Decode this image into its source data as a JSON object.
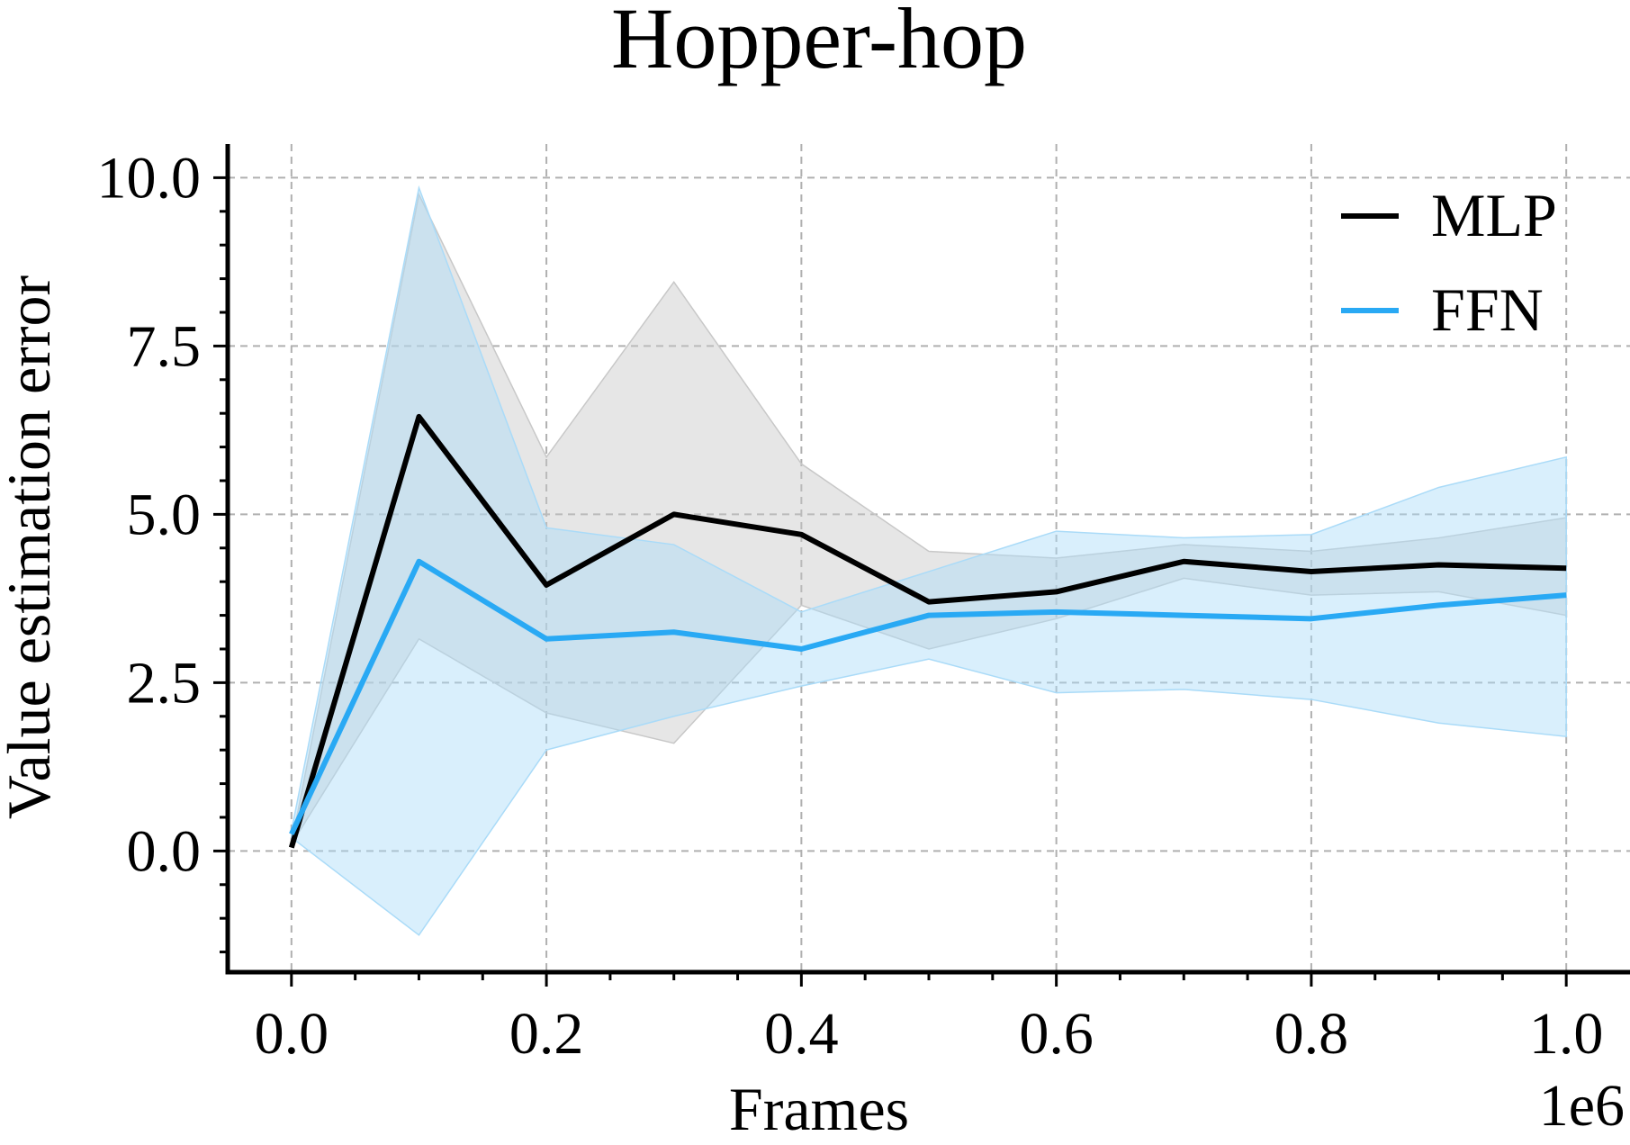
{
  "chart_data": {
    "type": "line",
    "title": "Hopper-hop",
    "xlabel": "Frames",
    "ylabel": "Value estimation error",
    "x_offset_text": "1e6",
    "xlim": [
      -0.05,
      1.05
    ],
    "ylim": [
      -1.8,
      10.5
    ],
    "x_ticks": [
      0.0,
      0.2,
      0.4,
      0.6,
      0.8,
      1.0
    ],
    "x_tick_labels": [
      "0.0",
      "0.2",
      "0.4",
      "0.6",
      "0.8",
      "1.0"
    ],
    "y_ticks": [
      0.0,
      2.5,
      5.0,
      7.5,
      10.0
    ],
    "y_tick_labels": [
      "0.0",
      "2.5",
      "5.0",
      "7.5",
      "10.0"
    ],
    "grid": true,
    "legend_position": "top-right",
    "x": [
      0.0,
      0.1,
      0.2,
      0.3,
      0.4,
      0.5,
      0.6,
      0.7,
      0.8,
      0.9,
      1.0
    ],
    "series": [
      {
        "name": "MLP",
        "color": "#000000",
        "fill_color": "#c8c8c8",
        "values": [
          0.05,
          6.45,
          3.95,
          5.0,
          4.7,
          3.7,
          3.85,
          4.3,
          4.15,
          4.25,
          4.2
        ],
        "lower": [
          0.1,
          3.15,
          2.05,
          1.6,
          3.65,
          3.0,
          3.45,
          4.05,
          3.8,
          3.85,
          3.5
        ],
        "upper": [
          0.1,
          9.75,
          5.85,
          8.45,
          5.75,
          4.45,
          4.35,
          4.55,
          4.45,
          4.65,
          4.95
        ]
      },
      {
        "name": "FFN",
        "color": "#29a9f4",
        "fill_color": "#aadbf8",
        "values": [
          0.25,
          4.3,
          3.15,
          3.25,
          3.0,
          3.5,
          3.55,
          3.5,
          3.45,
          3.65,
          3.8
        ],
        "lower": [
          0.2,
          -1.25,
          1.5,
          2.0,
          2.45,
          2.85,
          2.35,
          2.4,
          2.25,
          1.9,
          1.7
        ],
        "upper": [
          0.3,
          9.85,
          4.8,
          4.55,
          3.55,
          4.15,
          4.75,
          4.65,
          4.7,
          5.4,
          5.85
        ]
      }
    ]
  }
}
